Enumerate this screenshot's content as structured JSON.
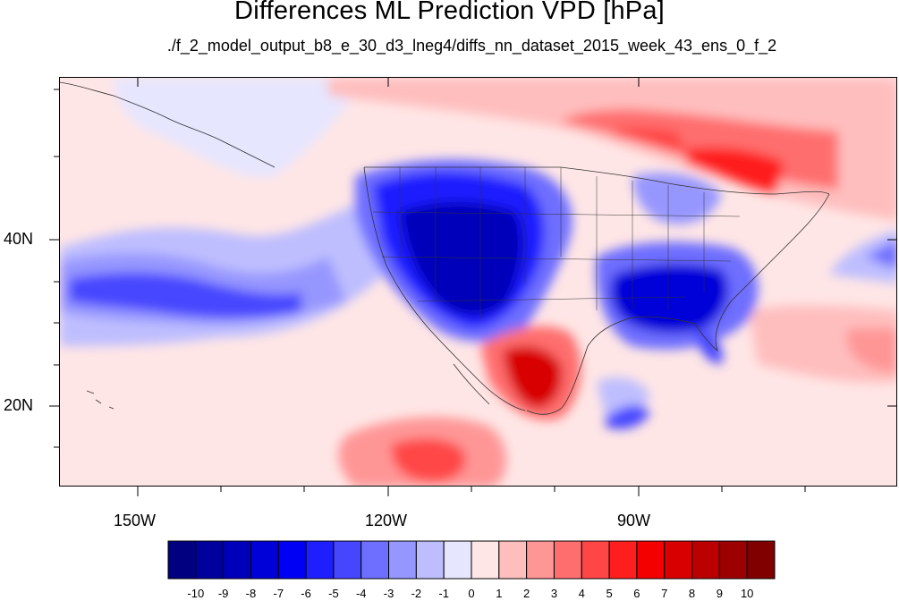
{
  "title": "Differences ML Prediction VPD [hPa]",
  "subtitle": "./f_2_model_output_b8_e_30_d3_lneg4/diffs_nn_dataset_2015_week_43_ens_0_f_2",
  "axes": {
    "lat_labels": [
      "40N",
      "20N"
    ],
    "lon_labels": [
      "150W",
      "120W",
      "90W"
    ]
  },
  "colorbar": {
    "labels": [
      "-10",
      "-9",
      "-8",
      "-7",
      "-6",
      "-5",
      "-4",
      "-3",
      "-2",
      "-1",
      "0",
      "1",
      "2",
      "3",
      "4",
      "5",
      "6",
      "7",
      "8",
      "9",
      "10"
    ],
    "colors": [
      "#000080",
      "#00009d",
      "#0000ba",
      "#0000d8",
      "#0000f5",
      "#1e1eff",
      "#4646ff",
      "#6e6eff",
      "#9696ff",
      "#bebeff",
      "#e6e6ff",
      "#ffe6e6",
      "#ffbebe",
      "#ff9696",
      "#ff6e6e",
      "#ff4646",
      "#ff1e1e",
      "#f50000",
      "#d80000",
      "#ba0000",
      "#9d0000",
      "#800000"
    ]
  }
}
